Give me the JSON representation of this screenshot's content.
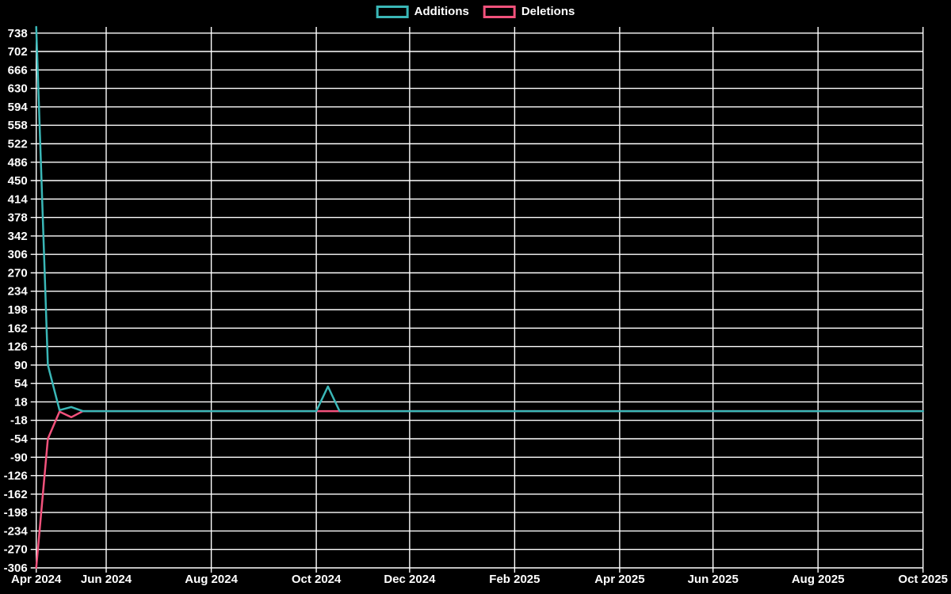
{
  "page": {
    "background": "#000000",
    "grid_color": "#ffffff",
    "text_color": "#ffffff"
  },
  "legend": {
    "position": "top",
    "items": [
      {
        "label": "Additions",
        "color": "#3ab7b7"
      },
      {
        "label": "Deletions",
        "color": "#f2527c"
      }
    ]
  },
  "chart_data": {
    "type": "line",
    "x_unit": "week",
    "num_points": 77,
    "x_tick_labels": [
      "Apr 2024",
      "Jun 2024",
      "Aug 2024",
      "Oct 2024",
      "Dec 2024",
      "Feb 2025",
      "Apr 2025",
      "Jun 2025",
      "Aug 2025",
      "Oct 2025"
    ],
    "x_tick_indices": [
      0,
      6,
      15,
      24,
      32,
      41,
      50,
      58,
      67,
      76
    ],
    "ylim": [
      -306,
      750
    ],
    "y_tick_step": 36,
    "y_tick_labels": [
      738,
      702,
      666,
      630,
      594,
      558,
      522,
      486,
      450,
      414,
      378,
      342,
      306,
      270,
      234,
      198,
      162,
      126,
      90,
      54,
      18,
      -18,
      -54,
      -90,
      -126,
      -162,
      -198,
      -234,
      -270,
      -306
    ],
    "grid": true,
    "legend_position": "top",
    "axis_color": "#ffffff",
    "text_color": "#ffffff",
    "background": "#000000",
    "series": [
      {
        "name": "Additions",
        "color": "#3ab7b7",
        "values": [
          750,
          90,
          2,
          8,
          0,
          0,
          0,
          0,
          0,
          0,
          0,
          0,
          0,
          0,
          0,
          0,
          0,
          0,
          0,
          0,
          0,
          0,
          0,
          0,
          0,
          48,
          0,
          0,
          0,
          0,
          0,
          0,
          0,
          0,
          0,
          0,
          0,
          0,
          0,
          0,
          0,
          0,
          0,
          0,
          0,
          0,
          0,
          0,
          0,
          0,
          0,
          0,
          0,
          0,
          0,
          0,
          0,
          0,
          0,
          0,
          0,
          0,
          0,
          0,
          0,
          0,
          0,
          0,
          0,
          0,
          0,
          0,
          0,
          0,
          0,
          0,
          0
        ]
      },
      {
        "name": "Deletions",
        "color": "#f2527c",
        "values": [
          -306,
          -54,
          -1,
          -12,
          0,
          0,
          0,
          0,
          0,
          0,
          0,
          0,
          0,
          0,
          0,
          0,
          0,
          0,
          0,
          0,
          0,
          0,
          0,
          0,
          0,
          0,
          0,
          0,
          0,
          0,
          0,
          0,
          0,
          0,
          0,
          0,
          0,
          0,
          0,
          0,
          0,
          0,
          0,
          0,
          0,
          0,
          0,
          0,
          0,
          0,
          0,
          0,
          0,
          0,
          0,
          0,
          0,
          0,
          0,
          0,
          0,
          0,
          0,
          0,
          0,
          0,
          0,
          0,
          0,
          0,
          0,
          0,
          0,
          0,
          0,
          0,
          0
        ]
      }
    ]
  }
}
